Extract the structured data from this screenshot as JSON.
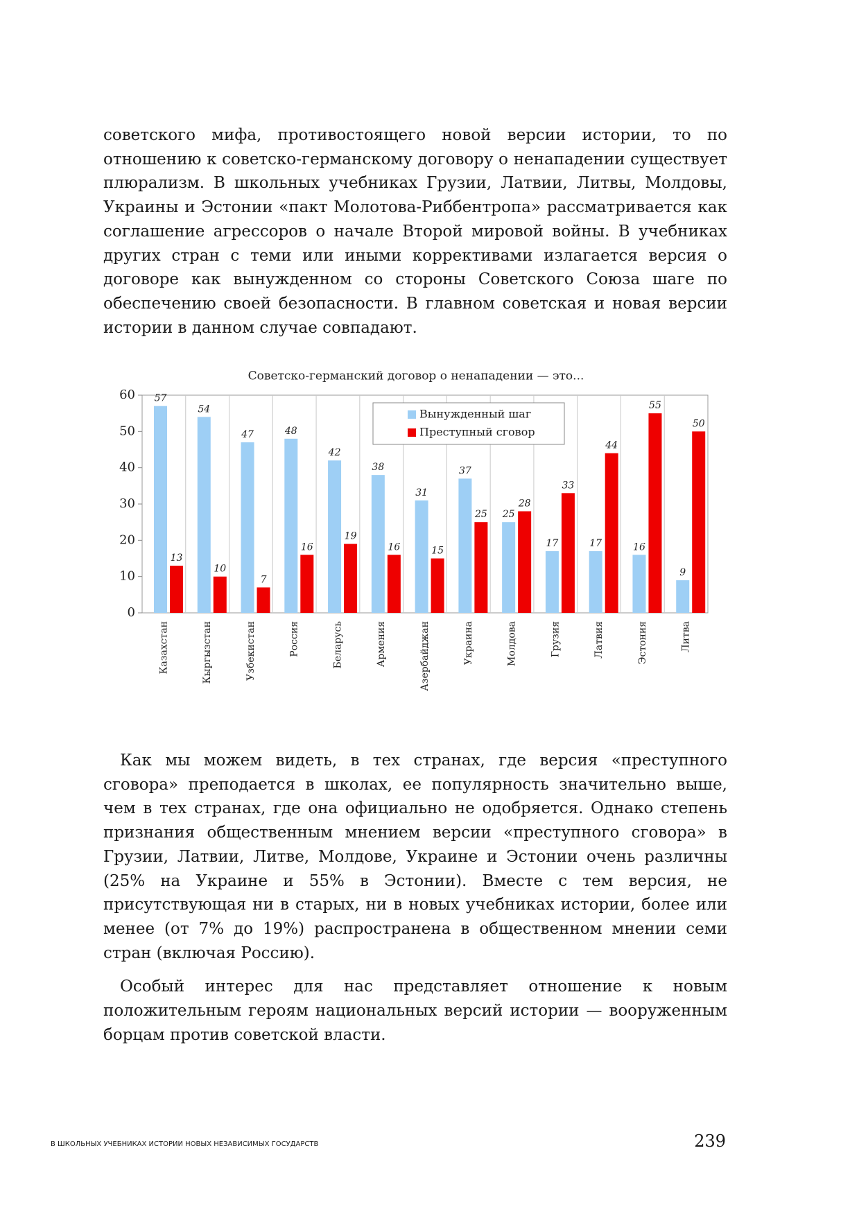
{
  "document": {
    "paragraphs_top": [
      "советского мифа, противостоящего новой версии истории, то по отношению к советско-германскому договору о ненападении существует плюрализм. В школьных учебниках Грузии, Латвии, Литвы, Молдовы, Украины и Эстонии «пакт Молотова-Риббентропа» рассматривается как соглашение агрессоров о начале Второй мировой войны. В учебниках других стран с теми или иными коррективами излагается версия о договоре как вынужденном со стороны Советского Союза шаге по обеспечению своей безопасности. В главном советская и новая версии истории в данном случае совпадают."
    ],
    "paragraphs_bottom": [
      "Как мы можем видеть, в тех странах, где версия «преступного сговора» преподается в школах, ее популярность значительно выше, чем в тех странах, где она официально не одобряется. Однако степень признания общественным мнением версии «преступного сговора» в Грузии, Латвии, Литве, Молдове, Украине и Эстонии очень различны (25% на Украине и 55% в Эстонии). Вместе с тем версия, не присутствующая ни в старых, ни в новых учебниках истории, более или менее (от 7% до 19%) распространена в общественном мнении семи стран (включая Россию).",
      "Особый интерес для нас представляет отношение к новым положительным героям национальных версий истории — вооруженным борцам против советской власти."
    ],
    "footer": "В ШКОЛЬНЫХ УЧЕБНИКАХ ИСТОРИИ НОВЫХ НЕЗАВИСИМЫХ ГОСУДАРСТВ",
    "page_number": "239"
  },
  "chart_data": {
    "type": "bar",
    "title": "Советско-германский договор о ненападении — это...",
    "categories": [
      "Казахстан",
      "Кыргызстан",
      "Узбекистан",
      "Россия",
      "Беларусь",
      "Армения",
      "Азербайджан",
      "Украина",
      "Молдова",
      "Грузия",
      "Латвия",
      "Эстония",
      "Литва"
    ],
    "series": [
      {
        "name": "Вынужденный шаг",
        "color": "#9ecff5",
        "values": [
          57,
          54,
          47,
          48,
          42,
          38,
          31,
          37,
          25,
          17,
          17,
          16,
          9
        ]
      },
      {
        "name": "Преступный сговор",
        "color": "#ee0000",
        "values": [
          13,
          10,
          7,
          16,
          19,
          16,
          15,
          25,
          28,
          33,
          44,
          55,
          50
        ]
      }
    ],
    "ylim": [
      0,
      60
    ],
    "yticks": [
      0,
      10,
      20,
      30,
      40,
      50,
      60
    ],
    "grid": true,
    "legend": "upper center"
  }
}
